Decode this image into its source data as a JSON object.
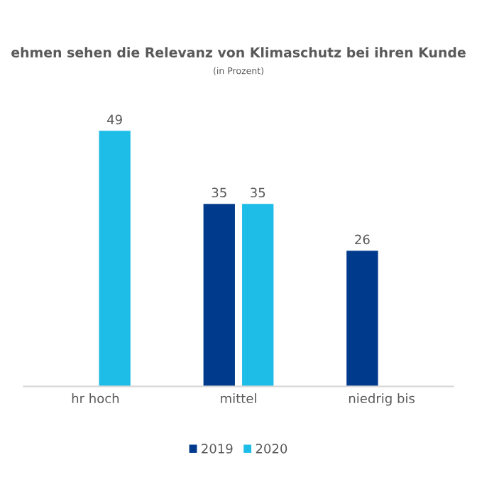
{
  "chart_data": {
    "type": "bar",
    "title": "ehmen sehen die Relevanz von Klimaschutz bei ihren Kunde",
    "subtitle": "(in Prozent)",
    "categories": [
      "hr hoch",
      "mittel",
      "niedrig bis"
    ],
    "series": [
      {
        "name": "2019",
        "color": "#003a8c",
        "values": [
          null,
          35,
          26
        ]
      },
      {
        "name": "2020",
        "color": "#1ebde8",
        "values": [
          49,
          35,
          null
        ]
      }
    ],
    "data_labels": true,
    "legend": "bottom",
    "grid": false
  }
}
